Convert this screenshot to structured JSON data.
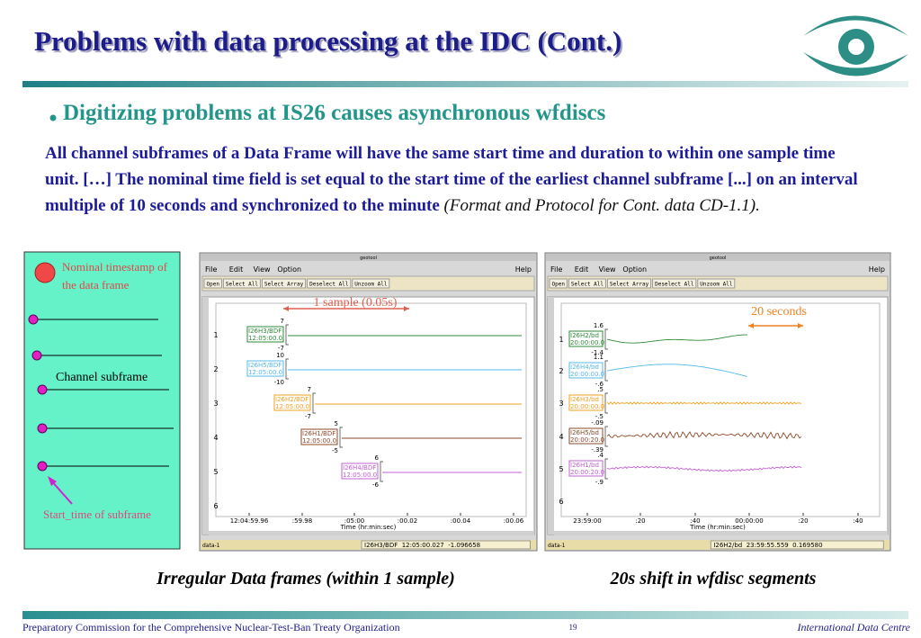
{
  "header": {
    "title": "Problems with data processing at the IDC (Cont.)"
  },
  "bullet": {
    "heading": "Digitizing problems at IS26 causes asynchronous wfdiscs",
    "body": "All channel subframes of a Data Frame will have the same start time and duration to within one sample time unit. […] The nominal time field is set equal to the start time of the earliest channel subframe [...] on an interval multiple of 10 seconds and synchronized to the minute",
    "reference": "(Format and Protocol for Cont. data CD-1.1)."
  },
  "diagram": {
    "nominal_label": "Nominal timestamp of the data frame",
    "subframe_label": "Channel subframe",
    "start_label": "Start_time of subframe"
  },
  "windows": [
    {
      "title": "geotool",
      "menus": [
        "File",
        "Edit",
        "View",
        "Option"
      ],
      "help": "Help",
      "buttons": [
        "Open",
        "Select All",
        "Select Array",
        "Deselect All",
        "Unzoom All"
      ],
      "annotation": "1 sample (0.05s)",
      "rows": [
        "1",
        "2",
        "3",
        "4",
        "5",
        "6"
      ],
      "channels": [
        {
          "name": "I26H3/BDF",
          "time": "12:05:00.0",
          "max": "7",
          "min": "-7"
        },
        {
          "name": "I26H5/BDF",
          "time": "12:05:00.0",
          "max": "10",
          "min": "-10"
        },
        {
          "name": "I26H2/BDF",
          "time": "12:05:00.0",
          "max": "7",
          "min": "-7"
        },
        {
          "name": "I26H1/BDF",
          "time": "12:05:00.0",
          "max": "5",
          "min": "-5"
        },
        {
          "name": "I26H4/BDF",
          "time": "12:05:00.0",
          "max": "6",
          "min": "-6"
        }
      ],
      "xticks": [
        "12:04:59.96",
        ":59.98",
        ":05:00",
        ":00.02",
        ":00.04",
        ":00.06"
      ],
      "xlabel": "Time (hr:min:sec)",
      "status": "data-1",
      "readout": "I26H3/BDF  12:05:00.027  -1.096658"
    },
    {
      "title": "geotool",
      "menus": [
        "File",
        "Edit",
        "View",
        "Option"
      ],
      "help": "Help",
      "buttons": [
        "Open",
        "Select All",
        "Select Array",
        "Deselect All",
        "Unzoom All"
      ],
      "annotation": "20 seconds",
      "rows": [
        "1",
        "2",
        "3",
        "4",
        "5",
        "6"
      ],
      "channels": [
        {
          "name": "I26H2/bd",
          "time": "20:00:00.0",
          "max": "1.6",
          "min": "-1.4"
        },
        {
          "name": "I26H4/bd",
          "time": "20:00:00.0",
          "max": "1.1",
          "min": "-.6"
        },
        {
          "name": "I26H3/bd",
          "time": "20:00:00.0",
          "max": ".5",
          "min": "-.5"
        },
        {
          "name": "I26H5/bd",
          "time": "20:00:20.0",
          "max": "-.09",
          "min": "-.39"
        },
        {
          "name": "I26H1/bd",
          "time": "20:00:20.0",
          "max": ".4",
          "min": "-.9"
        }
      ],
      "xticks": [
        "23:59:00",
        ":20",
        ":40",
        "00:00:00",
        ":20",
        ":40"
      ],
      "xlabel": "Time (hr:min:sec)",
      "status": "data-1",
      "readout": "I26H2/bd  23:59:55.559  0.169580"
    }
  ],
  "captions": [
    "Irregular Data frames (within 1 sample)",
    "20s shift in wfdisc segments"
  ],
  "footer": {
    "organization": "Preparatory Commission for the Comprehensive Nuclear-Test-Ban Treaty Organization",
    "page": "19",
    "centre": "International Data Centre"
  }
}
